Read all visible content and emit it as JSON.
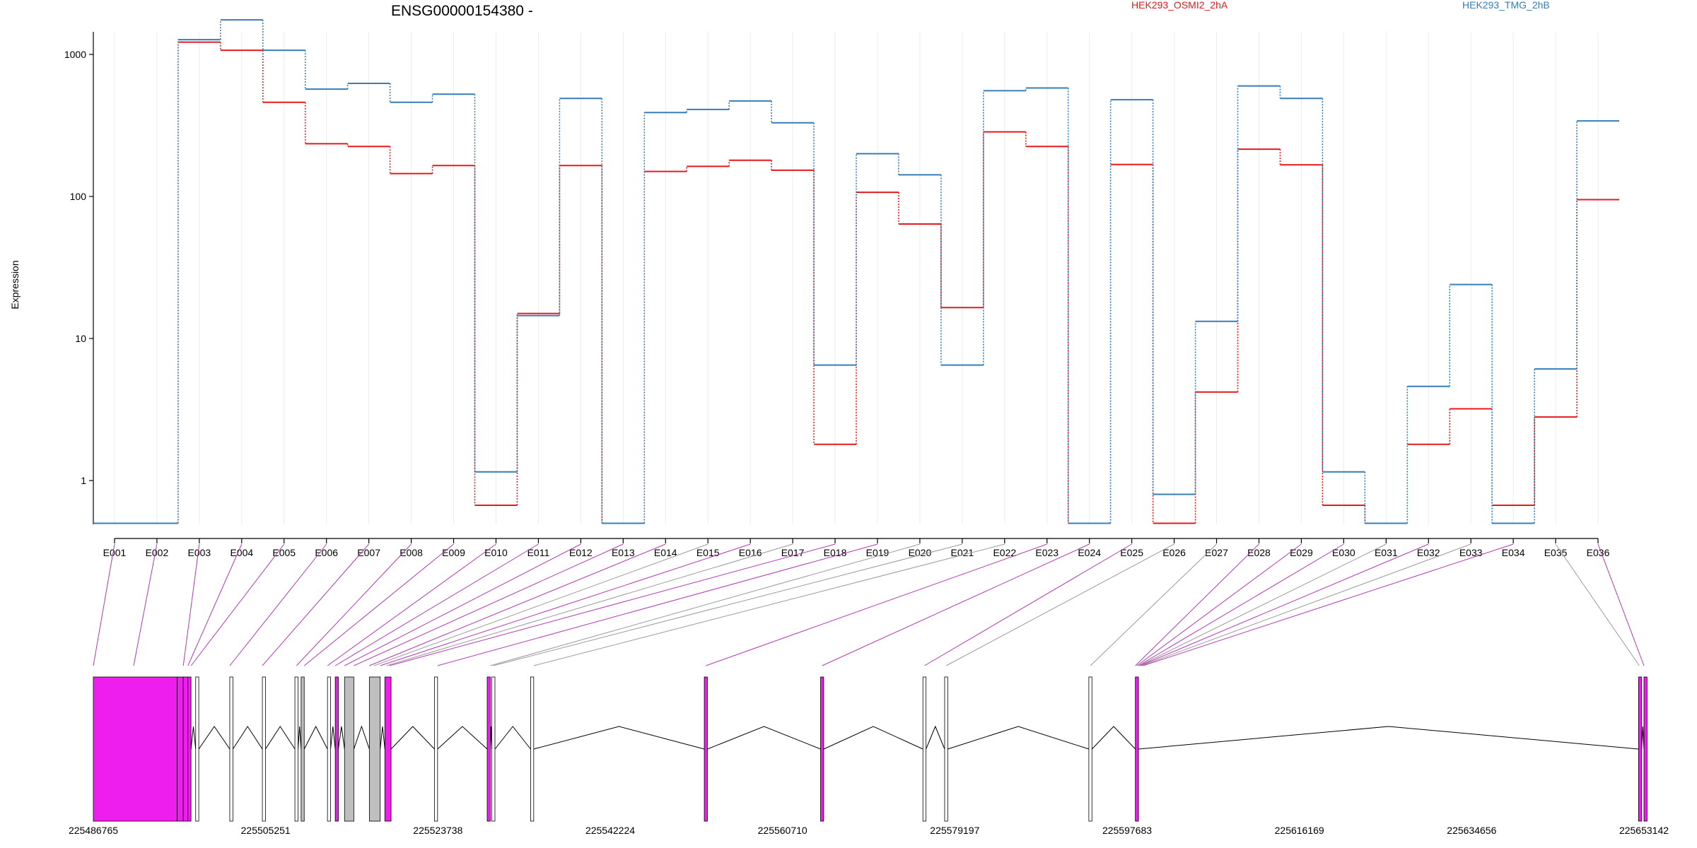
{
  "chart_data": {
    "type": "line",
    "title": "ENSG00000154380 -",
    "ylabel": "Expression",
    "yscale": "log",
    "ylim": [
      0.5,
      2400
    ],
    "yticks": [
      1,
      10,
      100,
      1000
    ],
    "ytick_labels": [
      "1",
      "10",
      "100",
      "1000"
    ],
    "grid": "vertical",
    "legend_position": "top-right",
    "categories": [
      "E001",
      "E002",
      "E003",
      "E004",
      "E005",
      "E006",
      "E007",
      "E008",
      "E009",
      "E010",
      "E011",
      "E012",
      "E013",
      "E014",
      "E015",
      "E016",
      "E017",
      "E018",
      "E019",
      "E020",
      "E021",
      "E022",
      "E023",
      "E024",
      "E025",
      "E026",
      "E027",
      "E028",
      "E029",
      "E030",
      "E031",
      "E032",
      "E033",
      "E034",
      "E035",
      "E036"
    ],
    "series": [
      {
        "name": "HEK293_OSMI2_2hA",
        "color": "#e41a1c",
        "values": [
          0.5,
          0.5,
          1220,
          1070,
          460,
          235,
          225,
          145,
          165,
          0.67,
          15,
          165,
          0.5,
          150,
          163,
          180,
          153,
          1.8,
          107,
          64,
          16.5,
          285,
          225,
          0.5,
          168,
          0.5,
          4.2,
          215,
          167,
          0.67,
          0.5,
          1.8,
          3.2,
          0.67,
          2.8,
          95
        ]
      },
      {
        "name": "HEK293_TMG_2hB",
        "color": "#377eb8",
        "values": [
          0.5,
          0.5,
          1270,
          1750,
          1070,
          570,
          625,
          460,
          525,
          1.15,
          14.5,
          490,
          0.5,
          390,
          410,
          470,
          330,
          6.5,
          200,
          142,
          6.5,
          555,
          580,
          0.5,
          480,
          0.8,
          13.2,
          600,
          490,
          1.15,
          0.5,
          4.6,
          24,
          0.5,
          6.1,
          340
        ]
      }
    ],
    "gene_model": {
      "coordinate_labels": [
        "225486765",
        "225505251",
        "225523738",
        "225542224",
        "225560710",
        "225579197",
        "225597683",
        "225616169",
        "225634656",
        "225653142"
      ],
      "range": [
        225486765,
        225653142
      ],
      "exon_color": "#ee1eee",
      "line_color": "#000000"
    }
  }
}
